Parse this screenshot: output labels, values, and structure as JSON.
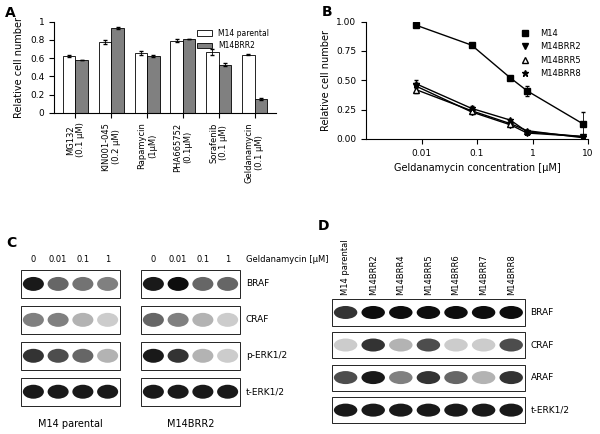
{
  "chart_data": [
    {
      "type": "bar",
      "title": "A",
      "y_label": "Relative cell number",
      "categories": [
        "MG132\n(0.1 µM)",
        "KIN001-045\n(0.2 µM)",
        "Rapamycin\n(1µM)",
        "PHA665752\n(0.1µM)",
        "Sorafenib\n(0.1 µM)",
        "Geldanamycin\n(0.1 µM)"
      ],
      "series": [
        {
          "name": "M14 parental",
          "color": "#ffffff",
          "values": [
            0.62,
            0.78,
            0.66,
            0.79,
            0.67,
            0.64
          ],
          "errors": [
            0.01,
            0.02,
            0.02,
            0.015,
            0.03,
            0.01
          ]
        },
        {
          "name": "M14BRR2",
          "color": "#808080",
          "values": [
            0.58,
            0.93,
            0.62,
            0.81,
            0.53,
            0.15
          ],
          "errors": [
            0.005,
            0.01,
            0.01,
            0.005,
            0.02,
            0.01
          ]
        }
      ],
      "ylim": [
        0,
        1
      ],
      "yticks": [
        0,
        0.2,
        0.4,
        0.6,
        0.8,
        1
      ],
      "legend": "upper right",
      "grid": false
    },
    {
      "type": "line",
      "title": "B",
      "x_label": "Geldanamycin concentration [µM]",
      "y_label": "Relative cell number",
      "x": [
        0.008,
        0.08,
        0.4,
        0.8,
        8
      ],
      "series": [
        {
          "name": "M14",
          "color": "#000000",
          "marker": "square",
          "line_style": "solid",
          "values": [
            0.97,
            0.8,
            0.52,
            0.41,
            0.13
          ],
          "errors": [
            0.01,
            0.01,
            0.02,
            0.04,
            0.1
          ]
        },
        {
          "name": "M14BRR2",
          "color": "#000000",
          "marker": "triangle_down",
          "line_style": "solid",
          "values": [
            0.45,
            0.23,
            0.12,
            0.05,
            0.02
          ],
          "errors": [
            0.02,
            0.02,
            0.01,
            0.01,
            0.01
          ]
        },
        {
          "name": "M14BRR5",
          "color": "#000000",
          "marker": "open_triangle_up",
          "line_style": "solid",
          "values": [
            0.42,
            0.24,
            0.13,
            0.07,
            0.01
          ],
          "errors": [
            0.03,
            0.02,
            0.01,
            0.01,
            0.01
          ]
        },
        {
          "name": "M14BRR8",
          "color": "#000000",
          "marker": "star",
          "line_style": "solid",
          "values": [
            0.47,
            0.26,
            0.16,
            0.06,
            0.02
          ],
          "errors": [
            0.03,
            0.02,
            0.01,
            0.01,
            0.01
          ]
        }
      ],
      "log": "x",
      "xlim": [
        0.001,
        10
      ],
      "xticks": [
        0.01,
        0.1,
        1,
        10
      ],
      "ylim": [
        0,
        1
      ],
      "yticks": [
        {
          "value": 0,
          "label": "0.00"
        },
        {
          "value": 0.25,
          "label": "0.25"
        },
        {
          "value": 0.5,
          "label": "0.50"
        },
        {
          "value": 0.75,
          "label": "0.75"
        },
        {
          "value": 1,
          "label": "1.00"
        }
      ],
      "legend": "upper right",
      "grid": false
    }
  ],
  "blots": [
    {
      "title": "C",
      "header": "Geldanamycin [µM]",
      "lanes": [
        "0",
        "0.01",
        "0.1",
        "1"
      ],
      "rows": [
        "BRAF",
        "CRAF",
        "p-ERK1/2",
        "t-ERK1/2"
      ],
      "samples": [
        {
          "name": "M14 parental",
          "bands": [
            [
              0.9,
              0.6,
              0.55,
              0.5
            ],
            [
              0.5,
              0.5,
              0.3,
              0.2
            ],
            [
              0.8,
              0.7,
              0.6,
              0.3
            ],
            [
              0.9,
              0.9,
              0.9,
              0.9
            ]
          ]
        },
        {
          "name": "M14BRR2",
          "bands": [
            [
              0.9,
              0.95,
              0.6,
              0.6
            ],
            [
              0.6,
              0.5,
              0.3,
              0.2
            ],
            [
              0.9,
              0.8,
              0.3,
              0.2
            ],
            [
              0.9,
              0.9,
              0.9,
              0.9
            ]
          ]
        }
      ]
    },
    {
      "title": "D",
      "lanes": [
        "M14 parental",
        "M14BRR2",
        "M14BRR4",
        "M14BRR5",
        "M14BRR6",
        "M14BRR7",
        "M14BRR8"
      ],
      "rows": [
        "BRAF",
        "CRAF",
        "ARAF",
        "t-ERK1/2"
      ],
      "bands": [
        [
          0.8,
          0.95,
          0.95,
          0.95,
          0.95,
          0.95,
          0.95
        ],
        [
          0.2,
          0.8,
          0.3,
          0.7,
          0.2,
          0.2,
          0.7
        ],
        [
          0.7,
          0.9,
          0.5,
          0.8,
          0.6,
          0.3,
          0.8
        ],
        [
          0.9,
          0.9,
          0.9,
          0.9,
          0.9,
          0.9,
          0.9
        ]
      ]
    }
  ]
}
